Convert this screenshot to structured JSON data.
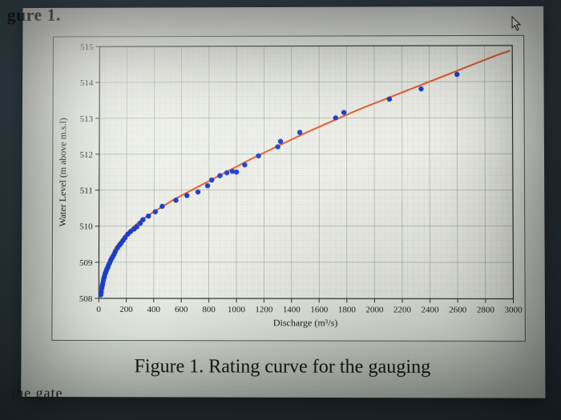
{
  "heading_fragment": "gure 1.",
  "caption": "Figure 1. Rating curve for the gauging",
  "bottom_fragment": "the gate",
  "chart": {
    "type": "scatter_with_fit",
    "xlabel": "Discharge (m³/s)",
    "ylabel": "Water Level (m above m.s.l)",
    "label_fontsize": 12,
    "tick_fontsize": 11,
    "xlim": [
      0,
      3000
    ],
    "ylim": [
      508,
      515
    ],
    "xticks": [
      0,
      200,
      400,
      600,
      800,
      1000,
      1200,
      1400,
      1600,
      1800,
      2000,
      2200,
      2400,
      2600,
      2800,
      3000
    ],
    "yticks": [
      508,
      509,
      510,
      511,
      512,
      513,
      514,
      515
    ],
    "grid": true,
    "minor_grid": true,
    "background_color": "#eceee7",
    "grid_color": "#9aa69b",
    "minor_grid_color": "#c6cfc4",
    "axis_color": "#2a322a",
    "tick_text_color": "#1b221b",
    "fit_curve": {
      "color": "#e65a2a",
      "width": 2.0,
      "points": [
        [
          10,
          508.05
        ],
        [
          20,
          508.35
        ],
        [
          40,
          508.7
        ],
        [
          70,
          509.0
        ],
        [
          120,
          509.4
        ],
        [
          200,
          509.8
        ],
        [
          300,
          510.15
        ],
        [
          400,
          510.4
        ],
        [
          550,
          510.75
        ],
        [
          700,
          511.05
        ],
        [
          900,
          511.45
        ],
        [
          1100,
          511.85
        ],
        [
          1300,
          512.22
        ],
        [
          1500,
          512.58
        ],
        [
          1700,
          512.92
        ],
        [
          1900,
          513.25
        ],
        [
          2100,
          513.55
        ],
        [
          2300,
          513.85
        ],
        [
          2500,
          514.15
        ],
        [
          2700,
          514.45
        ],
        [
          2900,
          514.75
        ],
        [
          2980,
          514.85
        ]
      ]
    },
    "scatter": {
      "color": "#1b3fd0",
      "marker_radius": 3.2,
      "points": [
        [
          15,
          508.1
        ],
        [
          18,
          508.18
        ],
        [
          22,
          508.28
        ],
        [
          25,
          508.35
        ],
        [
          28,
          508.4
        ],
        [
          32,
          508.48
        ],
        [
          36,
          508.55
        ],
        [
          40,
          508.6
        ],
        [
          45,
          508.68
        ],
        [
          50,
          508.72
        ],
        [
          55,
          508.78
        ],
        [
          60,
          508.82
        ],
        [
          65,
          508.86
        ],
        [
          70,
          508.92
        ],
        [
          78,
          508.98
        ],
        [
          85,
          509.05
        ],
        [
          92,
          509.1
        ],
        [
          100,
          509.15
        ],
        [
          110,
          509.22
        ],
        [
          120,
          509.3
        ],
        [
          135,
          509.4
        ],
        [
          150,
          509.48
        ],
        [
          160,
          509.52
        ],
        [
          175,
          509.6
        ],
        [
          190,
          509.68
        ],
        [
          210,
          509.78
        ],
        [
          230,
          509.85
        ],
        [
          255,
          509.92
        ],
        [
          275,
          509.98
        ],
        [
          300,
          510.08
        ],
        [
          320,
          510.18
        ],
        [
          360,
          510.28
        ],
        [
          410,
          510.4
        ],
        [
          460,
          510.55
        ],
        [
          560,
          510.72
        ],
        [
          640,
          510.85
        ],
        [
          720,
          510.95
        ],
        [
          790,
          511.12
        ],
        [
          820,
          511.28
        ],
        [
          880,
          511.4
        ],
        [
          930,
          511.48
        ],
        [
          970,
          511.52
        ],
        [
          1000,
          511.5
        ],
        [
          1060,
          511.7
        ],
        [
          1160,
          511.95
        ],
        [
          1300,
          512.2
        ],
        [
          1320,
          512.35
        ],
        [
          1460,
          512.6
        ],
        [
          1720,
          513.0
        ],
        [
          1780,
          513.15
        ],
        [
          2110,
          513.52
        ],
        [
          2340,
          513.8
        ],
        [
          2600,
          514.2
        ]
      ]
    }
  },
  "colors": {
    "page_bg": "#e4e7e0",
    "panel_border": "#54615a",
    "text": "#151814"
  }
}
